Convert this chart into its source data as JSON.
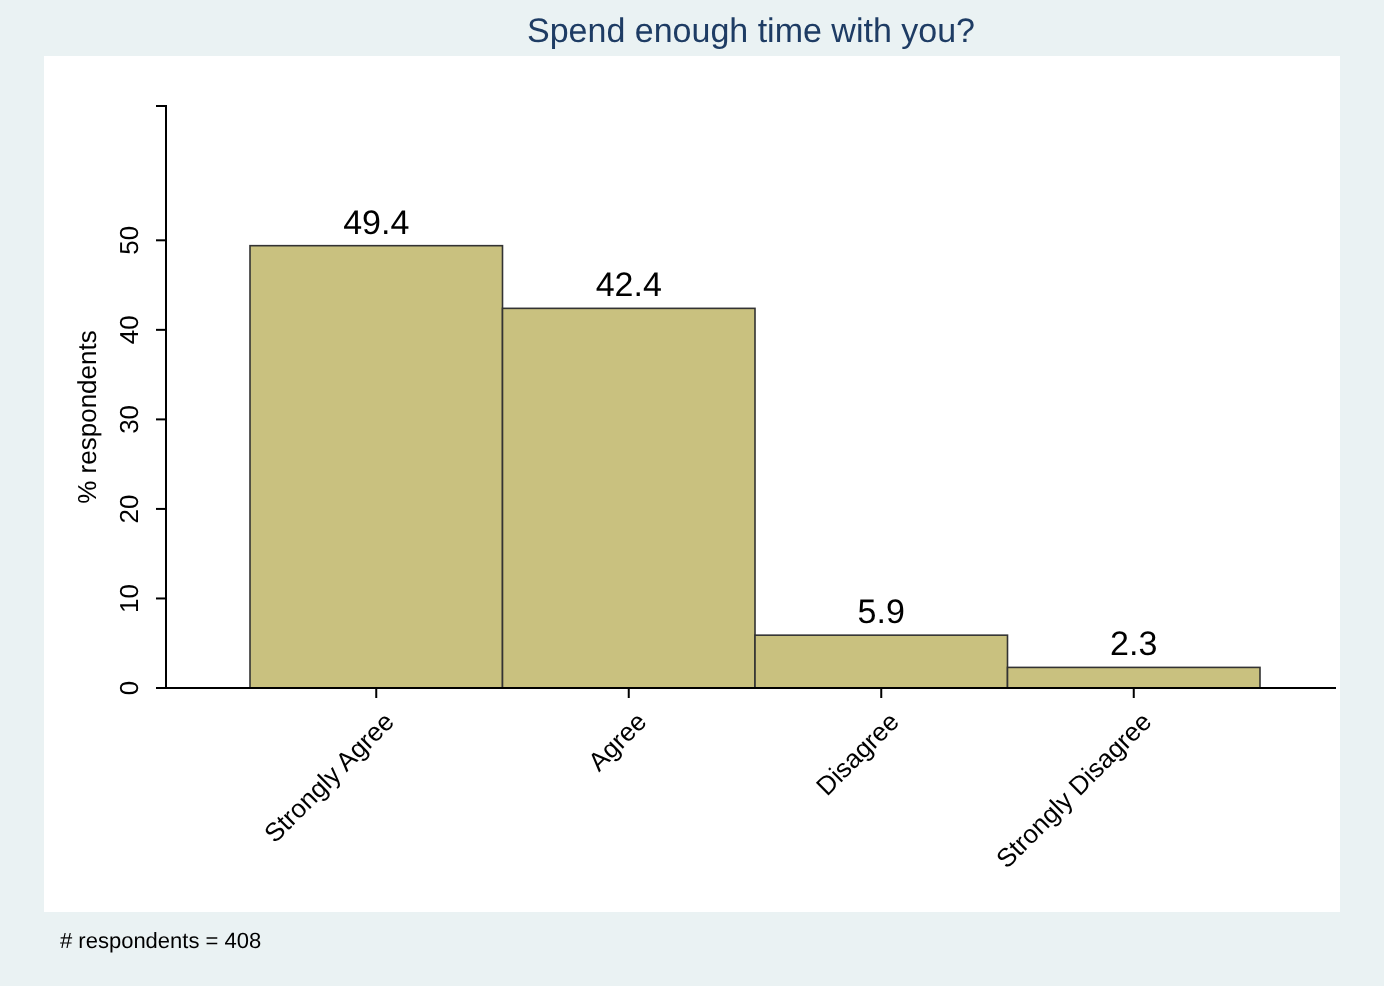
{
  "chart_data": {
    "type": "bar",
    "title": "Spend enough time with you?",
    "ylabel": "% respondents",
    "categories": [
      "Strongly Agree",
      "Agree",
      "Disagree",
      "Strongly Disagree"
    ],
    "values": [
      49.4,
      42.4,
      5.9,
      2.3
    ],
    "color": "#c9c17f",
    "ylim": [
      0,
      65
    ],
    "yticks": [
      0,
      10,
      20,
      30,
      40,
      50
    ],
    "grid": false,
    "data_labels": true,
    "annotations": [
      "# respondents = 408"
    ]
  }
}
